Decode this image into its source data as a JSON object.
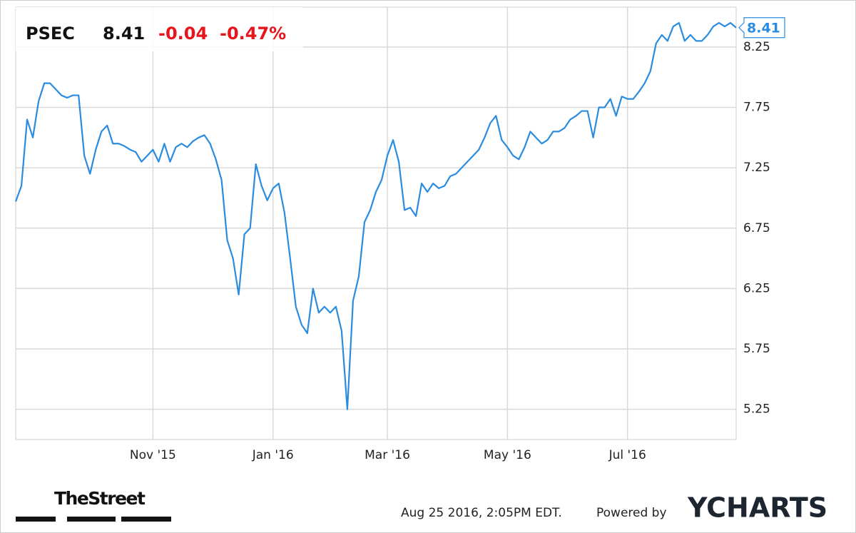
{
  "quote": {
    "symbol": "PSEC",
    "price": 8.41,
    "change": -0.04,
    "change_percent": "-0.47%"
  },
  "chart_data": {
    "type": "line",
    "categories": [
      null,
      null,
      null,
      null,
      null,
      null,
      null,
      null,
      null,
      null,
      null,
      null,
      null,
      null,
      null,
      null,
      null,
      null,
      null,
      null,
      null,
      null,
      null,
      null,
      "Nov '15",
      null,
      null,
      null,
      null,
      null,
      null,
      null,
      null,
      null,
      null,
      null,
      null,
      null,
      null,
      null,
      null,
      null,
      null,
      null,
      null,
      "Jan '16",
      null,
      null,
      null,
      null,
      null,
      null,
      null,
      null,
      null,
      null,
      null,
      null,
      null,
      null,
      null,
      null,
      null,
      null,
      null,
      "Mar '16",
      null,
      null,
      null,
      null,
      null,
      null,
      null,
      null,
      null,
      null,
      null,
      null,
      null,
      null,
      null,
      null,
      null,
      null,
      null,
      null,
      "May '16",
      null,
      null,
      null,
      null,
      null,
      null,
      null,
      null,
      null,
      null,
      null,
      null,
      null,
      null,
      null,
      null,
      null,
      null,
      null,
      null,
      "Jul '16",
      null,
      null,
      null,
      null,
      null,
      null,
      null,
      null,
      null,
      null,
      null,
      null,
      null,
      null,
      null,
      null,
      null,
      null,
      null
    ],
    "values": [
      6.97,
      7.1,
      7.65,
      7.5,
      7.8,
      7.95,
      7.95,
      7.9,
      7.85,
      7.83,
      7.85,
      7.85,
      7.35,
      7.2,
      7.4,
      7.55,
      7.6,
      7.45,
      7.45,
      7.43,
      7.4,
      7.38,
      7.3,
      7.35,
      7.4,
      7.3,
      7.45,
      7.3,
      7.42,
      7.45,
      7.42,
      7.47,
      7.5,
      7.52,
      7.45,
      7.32,
      7.15,
      6.65,
      6.5,
      6.2,
      6.7,
      6.75,
      7.28,
      7.1,
      6.98,
      7.08,
      7.12,
      6.88,
      6.5,
      6.1,
      5.95,
      5.88,
      6.25,
      6.05,
      6.1,
      6.05,
      6.1,
      5.9,
      5.25,
      6.15,
      6.35,
      6.8,
      6.9,
      7.05,
      7.15,
      7.35,
      7.48,
      7.3,
      6.9,
      6.92,
      6.85,
      7.12,
      7.05,
      7.12,
      7.08,
      7.1,
      7.18,
      7.2,
      7.25,
      7.3,
      7.35,
      7.4,
      7.5,
      7.62,
      7.68,
      7.48,
      7.42,
      7.35,
      7.32,
      7.42,
      7.55,
      7.5,
      7.45,
      7.48,
      7.55,
      7.55,
      7.58,
      7.65,
      7.68,
      7.72,
      7.72,
      7.5,
      7.75,
      7.75,
      7.82,
      7.68,
      7.84,
      7.82,
      7.82,
      7.88,
      7.95,
      8.05,
      8.28,
      8.35,
      8.3,
      8.42,
      8.45,
      8.3,
      8.35,
      8.3,
      8.3,
      8.35,
      8.42,
      8.45,
      8.42,
      8.45,
      8.41
    ],
    "color": "#2a8ce0",
    "ylim": [
      5.0,
      8.58
    ],
    "yticks": [
      5.25,
      5.75,
      6.25,
      6.75,
      7.25,
      7.75,
      8.25
    ],
    "grid": true
  },
  "footer": {
    "brand": "TheStreet",
    "timestamp": "Aug 25 2016, 2:05PM EDT.",
    "powered_by": "Powered by",
    "provider": "YCHARTS"
  }
}
